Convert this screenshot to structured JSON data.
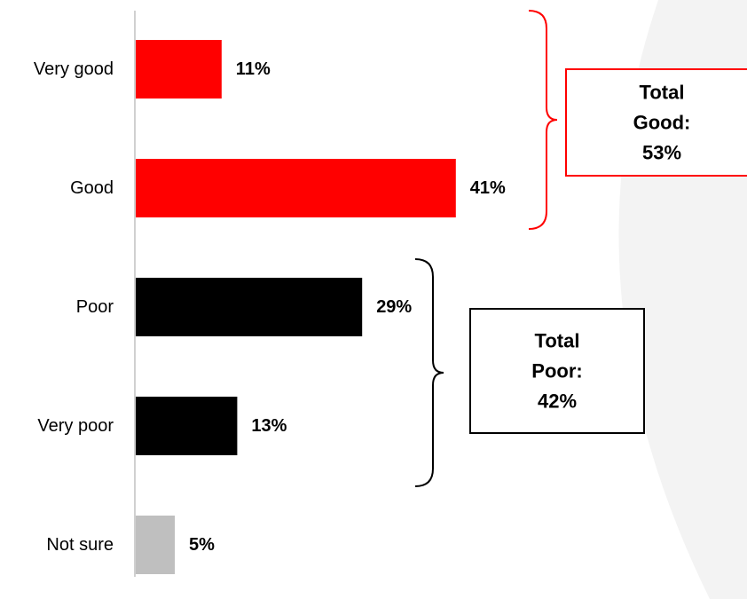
{
  "chart_data": {
    "type": "bar",
    "orientation": "horizontal",
    "categories": [
      "Very good",
      "Good",
      "Poor",
      "Very poor",
      "Not sure"
    ],
    "values": [
      11,
      41,
      29,
      13,
      5
    ],
    "value_labels": [
      "11%",
      "41%",
      "29%",
      "13%",
      "5%"
    ],
    "bar_colors": [
      "#ff0000",
      "#ff0000",
      "#000000",
      "#000000",
      "#bfbfbf"
    ],
    "xlim": [
      0,
      45
    ],
    "grid": false,
    "groups": [
      {
        "label_lines": [
          "Total",
          "Good:",
          "53%"
        ],
        "value": 53,
        "members": [
          "Very good",
          "Good"
        ],
        "color": "#ff0000"
      },
      {
        "label_lines": [
          "Total",
          "Poor:",
          "42%"
        ],
        "value": 42,
        "members": [
          "Poor",
          "Very poor"
        ],
        "color": "#000000"
      }
    ]
  },
  "colors": {
    "background": "#ffffff",
    "background_swoosh": "#f3f3f3",
    "axis": "#d0d0d0"
  }
}
